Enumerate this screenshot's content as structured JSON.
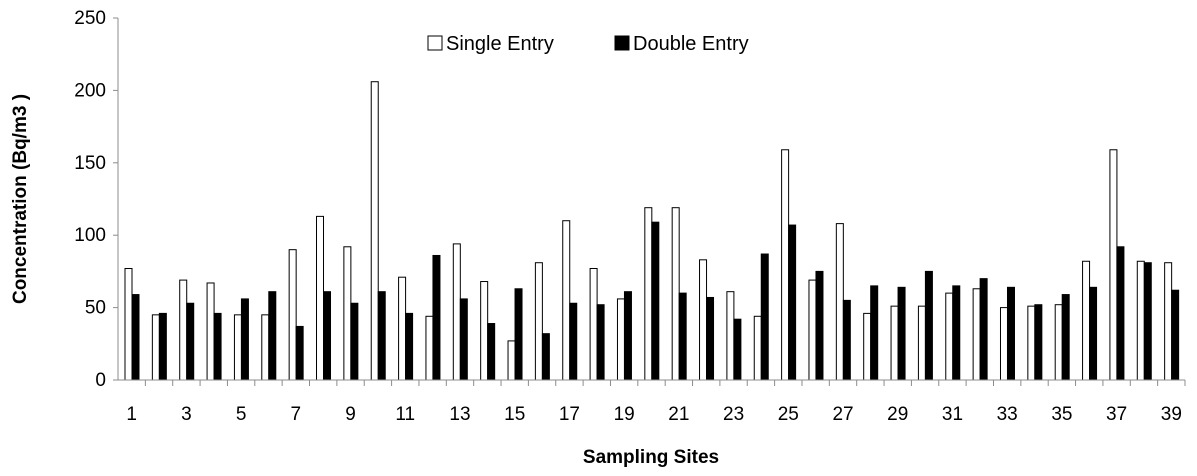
{
  "chart_data": {
    "type": "bar",
    "xlabel": "Sampling Sites",
    "ylabel": "Concentration (Bq/m3 )",
    "ylim": [
      0,
      250
    ],
    "yticks": [
      0,
      50,
      100,
      150,
      200,
      250
    ],
    "xtick_labels": [
      "1",
      "3",
      "5",
      "7",
      "9",
      "11",
      "13",
      "15",
      "17",
      "19",
      "21",
      "23",
      "25",
      "27",
      "29",
      "31",
      "33",
      "35",
      "37",
      "39"
    ],
    "categories": [
      "1",
      "2",
      "3",
      "4",
      "5",
      "6",
      "7",
      "8",
      "9",
      "10",
      "11",
      "12",
      "13",
      "14",
      "15",
      "16",
      "17",
      "18",
      "19",
      "20",
      "21",
      "22",
      "23",
      "24",
      "25",
      "26",
      "27",
      "28",
      "29",
      "30",
      "31",
      "32",
      "33",
      "34",
      "35",
      "36",
      "37",
      "38",
      "39"
    ],
    "legend_position": "top-center",
    "grid": false,
    "series": [
      {
        "name": "Single Entry",
        "fill": "#ffffff",
        "stroke": "#000000",
        "values": [
          77,
          45,
          69,
          67,
          45,
          45,
          90,
          113,
          92,
          206,
          71,
          44,
          94,
          68,
          27,
          81,
          110,
          77,
          56,
          119,
          119,
          83,
          61,
          44,
          159,
          69,
          108,
          46,
          51,
          51,
          60,
          63,
          50,
          51,
          52,
          82,
          159,
          82,
          81
        ]
      },
      {
        "name": "Double Entry",
        "fill": "#000000",
        "stroke": "#000000",
        "values": [
          59,
          46,
          53,
          46,
          56,
          61,
          37,
          61,
          53,
          61,
          46,
          86,
          56,
          39,
          63,
          32,
          53,
          52,
          61,
          109,
          60,
          57,
          42,
          87,
          107,
          75,
          55,
          65,
          64,
          75,
          65,
          70,
          64,
          52,
          59,
          64,
          92,
          81,
          62
        ]
      }
    ]
  }
}
